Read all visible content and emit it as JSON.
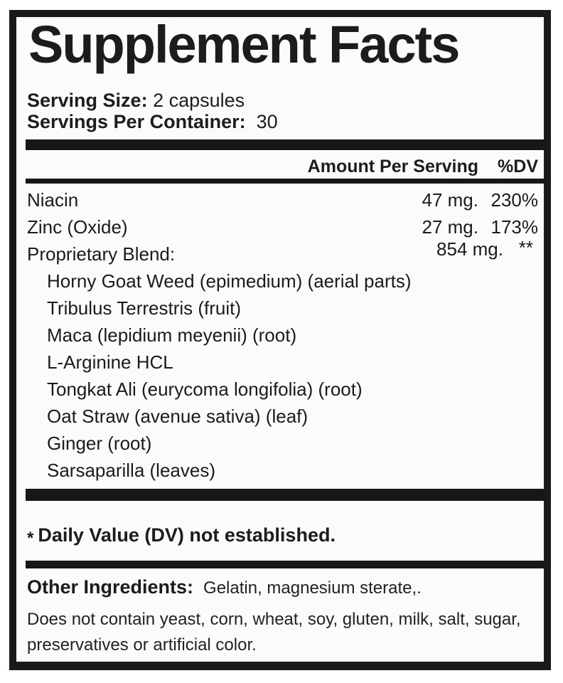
{
  "label": {
    "title": "Supplement Facts",
    "serving_size": {
      "label": "Serving Size:",
      "value": "2 capsules"
    },
    "servings_per_container": {
      "label": "Servings Per Container:",
      "value": "30"
    },
    "columns": {
      "amount": "Amount Per Serving",
      "dv": "%DV"
    },
    "nutrients": [
      {
        "name": "Niacin",
        "amount": "47 mg.",
        "dv": "230%"
      },
      {
        "name": "Zinc (Oxide)",
        "amount": "27 mg.",
        "dv": "173%"
      },
      {
        "name": "Proprietary Blend:",
        "amount": "854 mg.",
        "dv": "**"
      }
    ],
    "blend_ingredients": [
      "Horny Goat Weed (epimedium) (aerial parts)",
      "Tribulus Terrestris (fruit)",
      "Maca (lepidium meyenii) (root)",
      "L-Arginine HCL",
      "Tongkat Ali (eurycoma longifolia) (root)",
      "Oat Straw (avenue sativa) (leaf)",
      "Ginger (root)",
      "Sarsaparilla (leaves)"
    ],
    "footnote": {
      "star": "*",
      "text": "Daily Value (DV) not established."
    },
    "other_ingredients": {
      "label": "Other Ingredients:",
      "value": "Gelatin, magnesium sterate,."
    },
    "disclaimer": [
      "Does not contain yeast, corn, wheat, soy, gluten, milk, salt, sugar,",
      "preservatives or artificial color."
    ],
    "colors": {
      "text": "#1c1c1c",
      "bars": "#171717",
      "border": "#1a1a1a",
      "background": "#fbfbfa"
    }
  }
}
